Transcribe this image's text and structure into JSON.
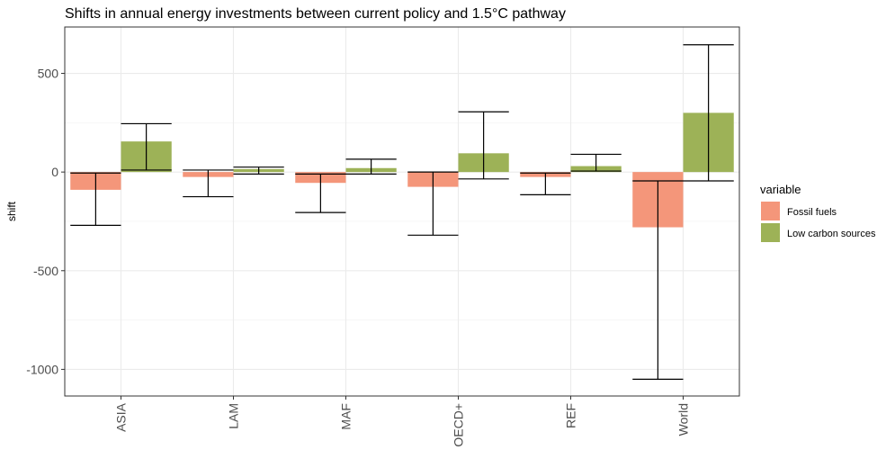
{
  "chart_data": {
    "type": "bar",
    "title": "Shifts in annual energy investments between current policy and 1.5°C pathway",
    "xlabel": "",
    "ylabel": "shift",
    "categories": [
      "ASIA",
      "LAM",
      "MAF",
      "OECD+",
      "REF",
      "World"
    ],
    "ylim": [
      -1135,
      735
    ],
    "yticks": [
      500,
      0,
      -500,
      -1000
    ],
    "ytick_labels": [
      "500",
      "0",
      "-500",
      "-1000"
    ],
    "grid": true,
    "legend": {
      "title": "variable",
      "position": "right"
    },
    "series": [
      {
        "name": "Fossil fuels",
        "color": "#F4967A",
        "values": [
          -90,
          -25,
          -55,
          -75,
          -25,
          -280
        ],
        "error_low": [
          -270,
          -125,
          -205,
          -320,
          -115,
          -1050
        ],
        "error_high": [
          -5,
          10,
          -10,
          0,
          -5,
          -45
        ]
      },
      {
        "name": "Low carbon sources",
        "color": "#9DB257",
        "values": [
          155,
          15,
          20,
          95,
          30,
          300
        ],
        "error_low": [
          10,
          -10,
          -10,
          -35,
          5,
          -45
        ],
        "error_high": [
          245,
          25,
          65,
          305,
          90,
          645
        ]
      }
    ]
  }
}
